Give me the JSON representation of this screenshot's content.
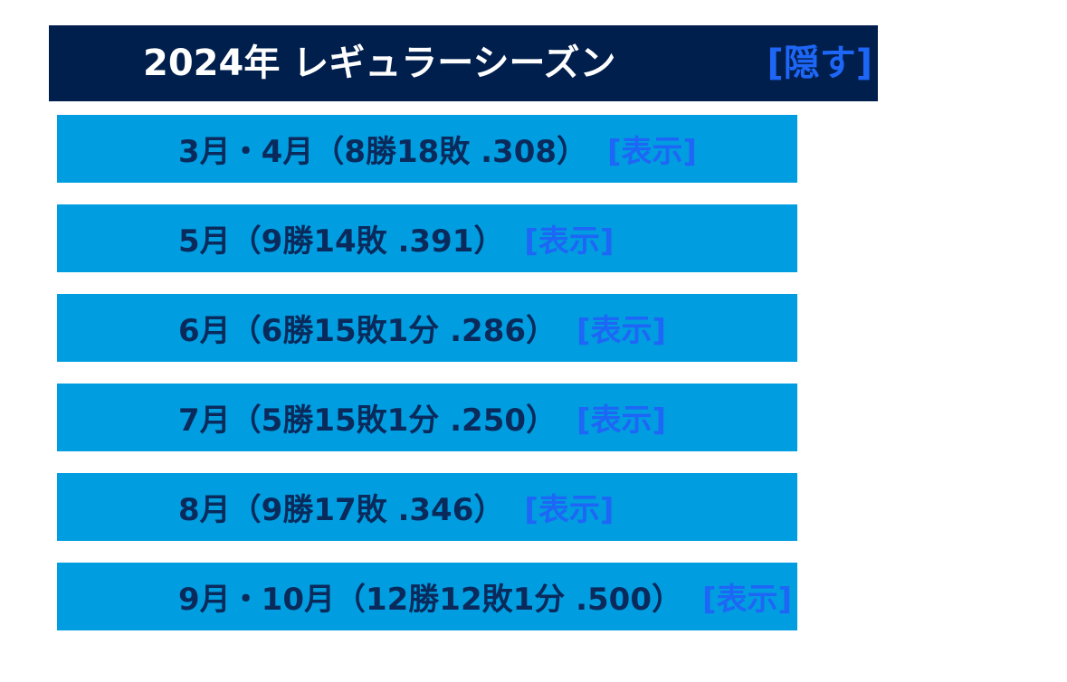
{
  "header": {
    "title": "2024年 レギュラーシーズン",
    "toggle_label": "[隠す]"
  },
  "months": [
    {
      "label": "3月・4月（8勝18敗 .308）",
      "toggle_label": "[表示]"
    },
    {
      "label": "5月（9勝14敗 .391）",
      "toggle_label": "[表示]"
    },
    {
      "label": "6月（6勝15敗1分 .286）",
      "toggle_label": "[表示]"
    },
    {
      "label": "7月（5勝15敗1分 .250）",
      "toggle_label": "[表示]"
    },
    {
      "label": "8月（9勝17敗 .346）",
      "toggle_label": "[表示]"
    },
    {
      "label": "9月・10月（12勝12敗1分 .500）",
      "toggle_label": "[表示]"
    }
  ],
  "colors": {
    "header_background": "#001f4d",
    "row_background": "#009ee0",
    "row_text": "#0a2a5c",
    "link": "#1e66f5"
  }
}
